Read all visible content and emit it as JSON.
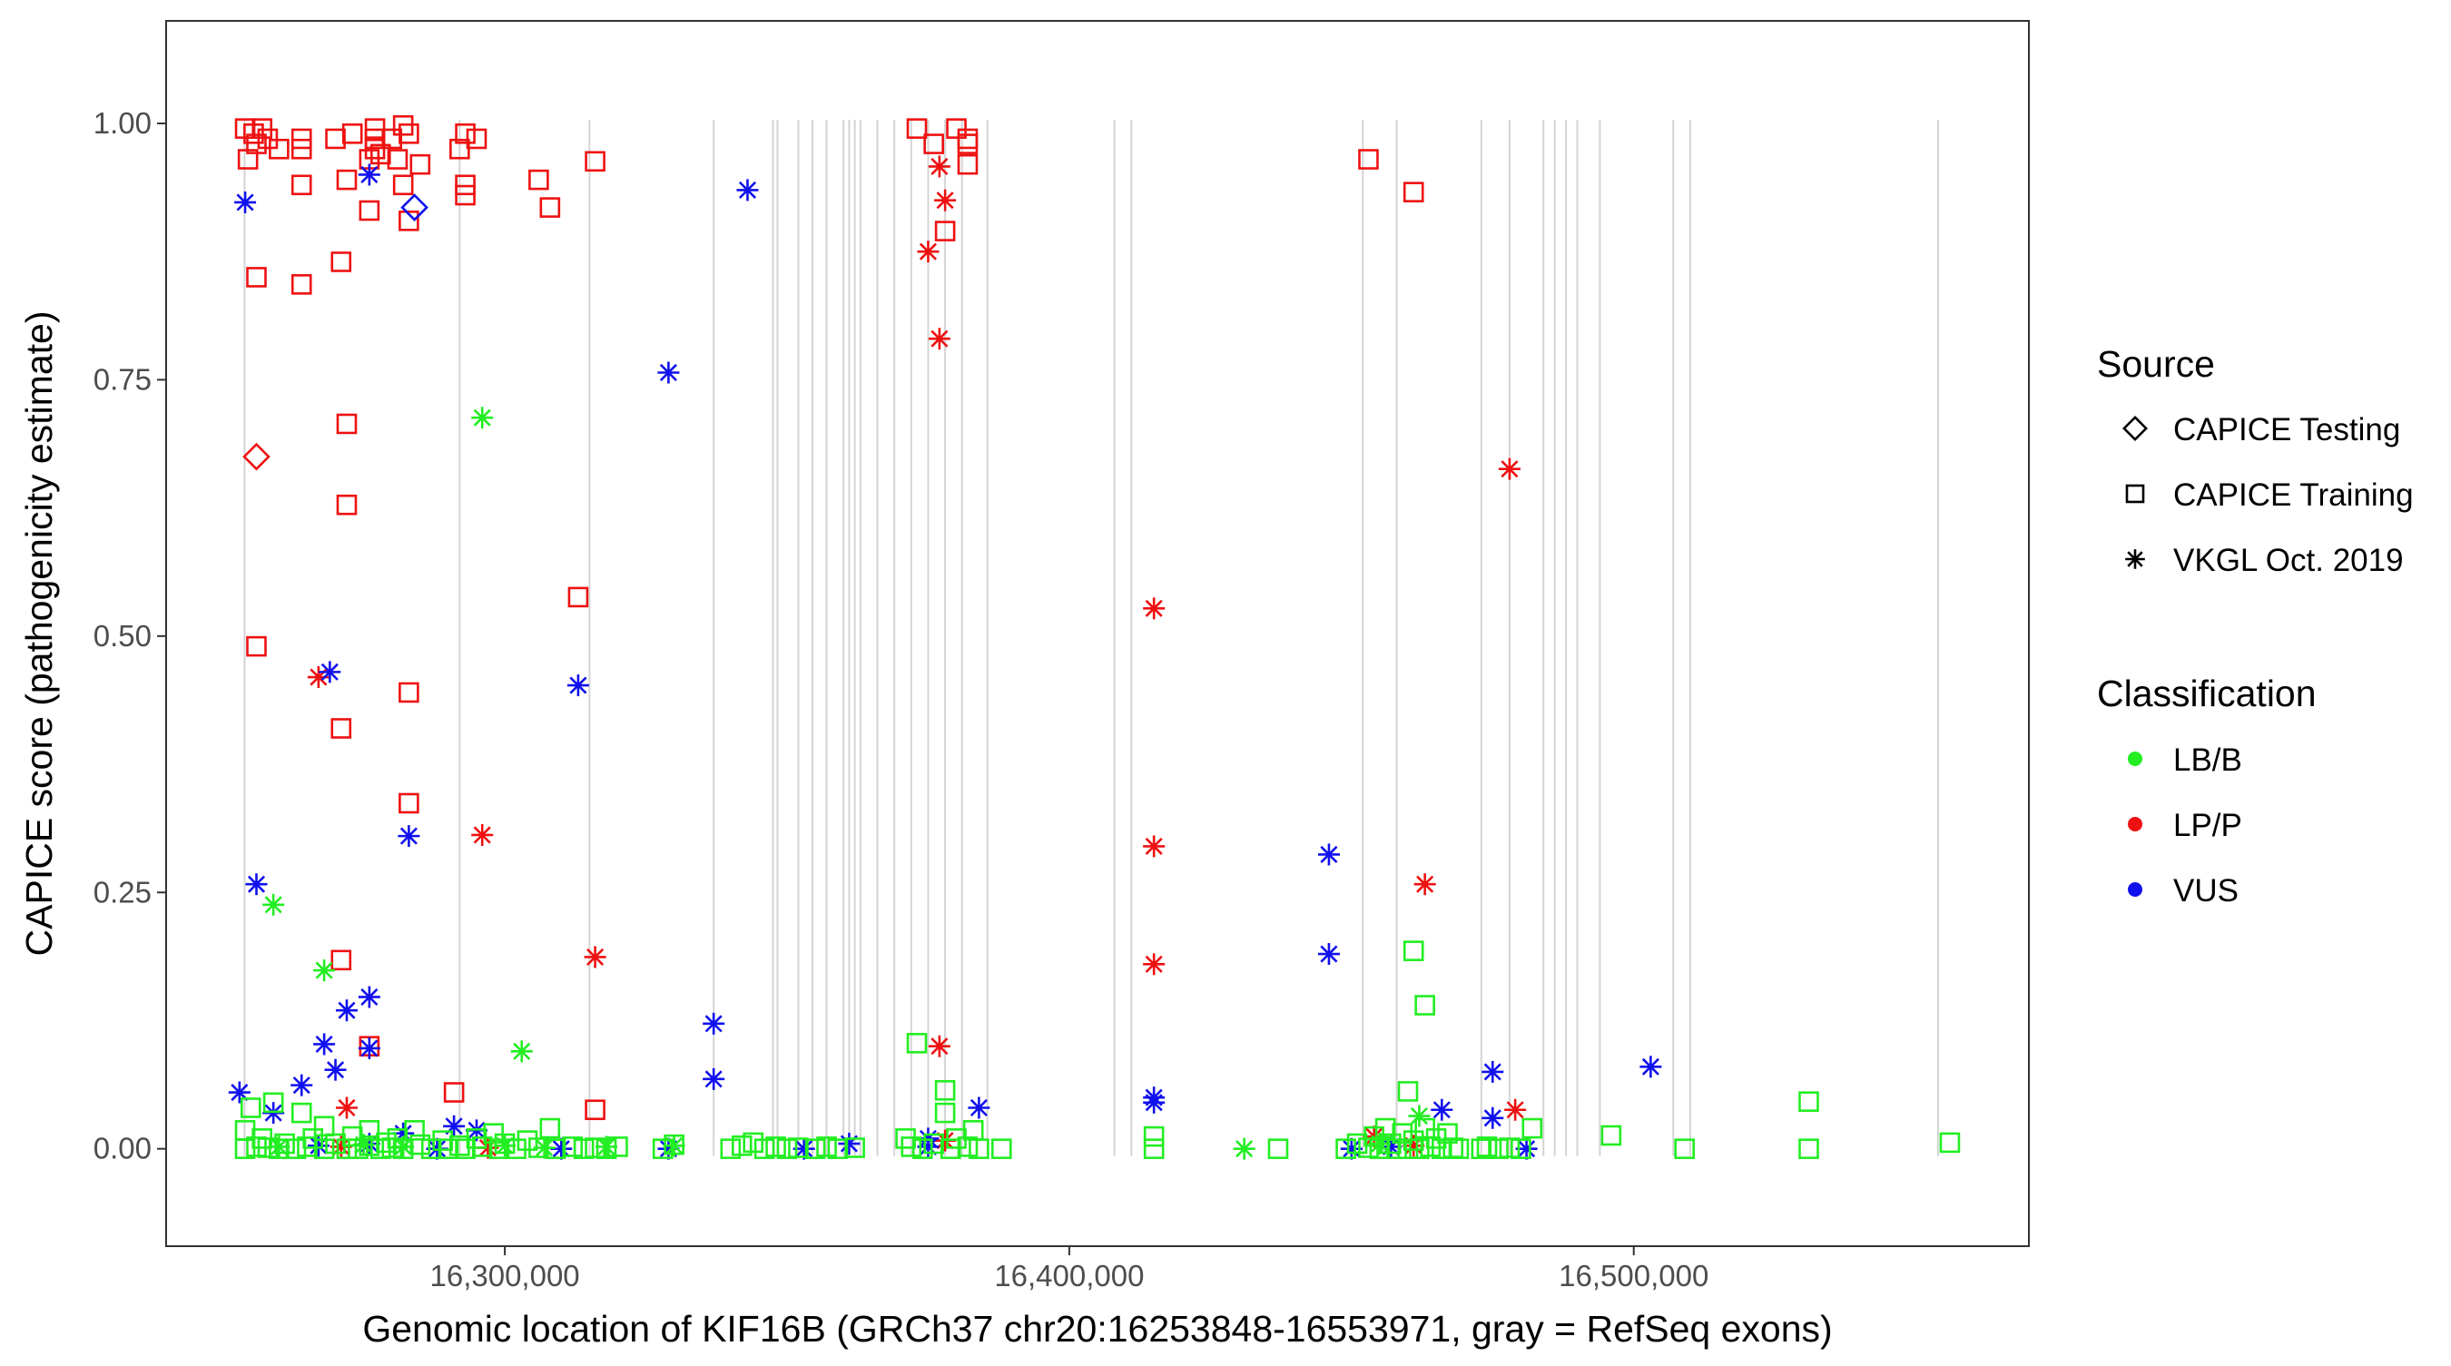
{
  "chart_data": {
    "type": "scatter",
    "xlabel": "Genomic location of KIF16B (GRCh37 chr20:16253848-16553971, gray = RefSeq exons)",
    "ylabel": "CAPICE score (pathogenicity estimate)",
    "xlim": [
      16240000,
      16570000
    ],
    "ylim": [
      -0.095,
      1.1
    ],
    "x_ticks": [
      {
        "value": 16300000,
        "label": "16,300,000"
      },
      {
        "value": 16400000,
        "label": "16,400,000"
      },
      {
        "value": 16500000,
        "label": "16,500,000"
      }
    ],
    "y_ticks": [
      {
        "value": 0,
        "label": "0.00"
      },
      {
        "value": 0.25,
        "label": "0.25"
      },
      {
        "value": 0.5,
        "label": "0.50"
      },
      {
        "value": 0.75,
        "label": "0.75"
      },
      {
        "value": 1,
        "label": "1.00"
      }
    ],
    "exons": [
      16253900,
      16292000,
      16315000,
      16337000,
      16347500,
      16348300,
      16352000,
      16354500,
      16357000,
      16360000,
      16361000,
      16362000,
      16363000,
      16366000,
      16369000,
      16372000,
      16375000,
      16378000,
      16381000,
      16385500,
      16408000,
      16411000,
      16452000,
      16458000,
      16473000,
      16478000,
      16484000,
      16486000,
      16488000,
      16490000,
      16494000,
      16507000,
      16510000,
      16553900
    ],
    "colors": {
      "LB/B": "#22ee22",
      "LP/P": "#ee1111",
      "VUS": "#1111ee"
    },
    "legend": {
      "source_title": "Source",
      "source_items": [
        {
          "label": "CAPICE Testing",
          "shape": "diamond"
        },
        {
          "label": "CAPICE Training",
          "shape": "square"
        },
        {
          "label": "VKGL Oct. 2019",
          "shape": "asterisk"
        }
      ],
      "class_title": "Classification",
      "class_items": [
        {
          "label": "LB/B",
          "color": "#22ee22"
        },
        {
          "label": "LP/P",
          "color": "#ee1111"
        },
        {
          "label": "VUS",
          "color": "#1111ee"
        }
      ]
    },
    "series": [
      {
        "name": "CAPICE Training / LP/P",
        "shape": "square",
        "class": "LP/P",
        "points": [
          [
            16254000,
            0.995
          ],
          [
            16255500,
            0.99
          ],
          [
            16257000,
            0.995
          ],
          [
            16254500,
            0.965
          ],
          [
            16256000,
            0.98
          ],
          [
            16258000,
            0.985
          ],
          [
            16260000,
            0.975
          ],
          [
            16264000,
            0.985
          ],
          [
            16264000,
            0.975
          ],
          [
            16264000,
            0.94
          ],
          [
            16270000,
            0.985
          ],
          [
            16273000,
            0.99
          ],
          [
            16272000,
            0.945
          ],
          [
            16277000,
            0.995
          ],
          [
            16277000,
            0.985
          ],
          [
            16277000,
            0.975
          ],
          [
            16276000,
            0.965
          ],
          [
            16278000,
            0.97
          ],
          [
            16280000,
            0.985
          ],
          [
            16282000,
            0.998
          ],
          [
            16283000,
            0.99
          ],
          [
            16281000,
            0.965
          ],
          [
            16285000,
            0.96
          ],
          [
            16282000,
            0.94
          ],
          [
            16283000,
            0.905
          ],
          [
            16276000,
            0.915
          ],
          [
            16293000,
            0.99
          ],
          [
            16295000,
            0.985
          ],
          [
            16292000,
            0.975
          ],
          [
            16293000,
            0.94
          ],
          [
            16293000,
            0.93
          ],
          [
            16306000,
            0.945
          ],
          [
            16308000,
            0.918
          ],
          [
            16316000,
            0.963
          ],
          [
            16256000,
            0.85
          ],
          [
            16264000,
            0.843
          ],
          [
            16271000,
            0.865
          ],
          [
            16373000,
            0.995
          ],
          [
            16376000,
            0.98
          ],
          [
            16380000,
            0.995
          ],
          [
            16382000,
            0.985
          ],
          [
            16382000,
            0.98
          ],
          [
            16382000,
            0.96
          ],
          [
            16378000,
            0.895
          ],
          [
            16453000,
            0.965
          ],
          [
            16461000,
            0.933
          ],
          [
            16272000,
            0.707
          ],
          [
            16272000,
            0.628
          ],
          [
            16256000,
            0.49
          ],
          [
            16313000,
            0.538
          ],
          [
            16271000,
            0.41
          ],
          [
            16283000,
            0.445
          ],
          [
            16283000,
            0.337
          ],
          [
            16271000,
            0.184
          ],
          [
            16276000,
            0.1
          ],
          [
            16291000,
            0.055
          ],
          [
            16316000,
            0.038
          ]
        ]
      },
      {
        "name": "CAPICE Testing / LP/P",
        "shape": "diamond",
        "class": "LP/P",
        "points": [
          [
            16256000,
            0.675
          ]
        ]
      },
      {
        "name": "CAPICE Testing / VUS",
        "shape": "diamond",
        "class": "VUS",
        "points": [
          [
            16284000,
            0.918
          ]
        ]
      },
      {
        "name": "VKGL Oct. 2019 / LP/P",
        "shape": "asterisk",
        "class": "LP/P",
        "points": [
          [
            16377000,
            0.958
          ],
          [
            16378000,
            0.925
          ],
          [
            16375000,
            0.875
          ],
          [
            16377000,
            0.79
          ],
          [
            16267000,
            0.46
          ],
          [
            16296000,
            0.306
          ],
          [
            16316000,
            0.187
          ],
          [
            16377000,
            0.1
          ],
          [
            16272000,
            0.04
          ],
          [
            16378000,
            0.008
          ],
          [
            16271000,
            0.002
          ],
          [
            16297000,
            0.001
          ],
          [
            16415000,
            0.527
          ],
          [
            16415000,
            0.295
          ],
          [
            16415000,
            0.18
          ],
          [
            16478000,
            0.663
          ],
          [
            16463000,
            0.258
          ],
          [
            16479000,
            0.038
          ],
          [
            16454000,
            0.012
          ],
          [
            16461000,
            0.003
          ]
        ]
      },
      {
        "name": "VKGL Oct. 2019 / VUS",
        "shape": "asterisk",
        "class": "VUS",
        "points": [
          [
            16254000,
            0.923
          ],
          [
            16276000,
            0.95
          ],
          [
            16343000,
            0.935
          ],
          [
            16329000,
            0.757
          ],
          [
            16269000,
            0.465
          ],
          [
            16313000,
            0.452
          ],
          [
            16283000,
            0.305
          ],
          [
            16256000,
            0.258
          ],
          [
            16337000,
            0.122
          ],
          [
            16337000,
            0.068
          ],
          [
            16276000,
            0.148
          ],
          [
            16272000,
            0.135
          ],
          [
            16268000,
            0.102
          ],
          [
            16276000,
            0.098
          ],
          [
            16270000,
            0.077
          ],
          [
            16264000,
            0.062
          ],
          [
            16253000,
            0.055
          ],
          [
            16259000,
            0.035
          ],
          [
            16282000,
            0.015
          ],
          [
            16291000,
            0.022
          ],
          [
            16295000,
            0.018
          ],
          [
            16384000,
            0.04
          ],
          [
            16375000,
            0.01
          ],
          [
            16375000,
            0.002
          ],
          [
            16361000,
            0.005
          ],
          [
            16329000,
            0.0
          ],
          [
            16415000,
            0.05
          ],
          [
            16415000,
            0.045
          ],
          [
            16446000,
            0.287
          ],
          [
            16446000,
            0.19
          ],
          [
            16475000,
            0.075
          ],
          [
            16475000,
            0.03
          ],
          [
            16466000,
            0.038
          ],
          [
            16503000,
            0.08
          ],
          [
            16481000,
            0.0
          ],
          [
            16450000,
            0.0
          ],
          [
            16457000,
            0.002
          ],
          [
            16267000,
            0.003
          ],
          [
            16276000,
            0.005
          ],
          [
            16288000,
            0.0
          ],
          [
            16310000,
            0.0
          ],
          [
            16353000,
            0.0
          ]
        ]
      },
      {
        "name": "VKGL Oct. 2019 / LB/B",
        "shape": "asterisk",
        "class": "LB/B",
        "points": [
          [
            16296000,
            0.713
          ],
          [
            16259000,
            0.238
          ],
          [
            16268000,
            0.174
          ],
          [
            16303000,
            0.095
          ],
          [
            16431000,
            0.0
          ],
          [
            16462000,
            0.032
          ],
          [
            16300000,
            0.003
          ],
          [
            16260000,
            0.002
          ],
          [
            16275000,
            0.004
          ],
          [
            16307000,
            0.001
          ],
          [
            16318000,
            0.002
          ],
          [
            16330000,
            0.003
          ],
          [
            16282000,
            0.002
          ],
          [
            16455000,
            0.005
          ]
        ]
      },
      {
        "name": "CAPICE Training / LB/B",
        "shape": "square",
        "class": "LB/B",
        "points": [
          [
            16254000,
            0.018
          ],
          [
            16254000,
            0.0
          ],
          [
            16255000,
            0.04
          ],
          [
            16256000,
            0.002
          ],
          [
            16257000,
            0.01
          ],
          [
            16258000,
            0.001
          ],
          [
            16259000,
            0.045
          ],
          [
            16260000,
            0.0
          ],
          [
            16261000,
            0.005
          ],
          [
            16263000,
            0.0
          ],
          [
            16264000,
            0.035
          ],
          [
            16265000,
            0.002
          ],
          [
            16266000,
            0.01
          ],
          [
            16268000,
            0.022
          ],
          [
            16268000,
            0.0
          ],
          [
            16270000,
            0.005
          ],
          [
            16272000,
            0.0
          ],
          [
            16273000,
            0.012
          ],
          [
            16274000,
            0.0
          ],
          [
            16276000,
            0.018
          ],
          [
            16276000,
            0.003
          ],
          [
            16278000,
            0.0
          ],
          [
            16279000,
            0.006
          ],
          [
            16280000,
            0.001
          ],
          [
            16281000,
            0.01
          ],
          [
            16282000,
            0.0
          ],
          [
            16284000,
            0.018
          ],
          [
            16285000,
            0.004
          ],
          [
            16287000,
            0.0
          ],
          [
            16289000,
            0.008
          ],
          [
            16290000,
            0.0
          ],
          [
            16292000,
            0.003
          ],
          [
            16293000,
            0.0
          ],
          [
            16295000,
            0.01
          ],
          [
            16296000,
            0.002
          ],
          [
            16298000,
            0.015
          ],
          [
            16299000,
            0.0
          ],
          [
            16300000,
            0.005
          ],
          [
            16302000,
            0.0
          ],
          [
            16304000,
            0.008
          ],
          [
            16306000,
            0.001
          ],
          [
            16308000,
            0.02
          ],
          [
            16309000,
            0.0
          ],
          [
            16312000,
            0.002
          ],
          [
            16314000,
            0.0
          ],
          [
            16316000,
            0.001
          ],
          [
            16318000,
            0.0
          ],
          [
            16320000,
            0.002
          ],
          [
            16328000,
            0.0
          ],
          [
            16330000,
            0.004
          ],
          [
            16340000,
            0.0
          ],
          [
            16342000,
            0.003
          ],
          [
            16344000,
            0.006
          ],
          [
            16346000,
            0.0
          ],
          [
            16348000,
            0.002
          ],
          [
            16350000,
            0.0
          ],
          [
            16352000,
            0.001
          ],
          [
            16355000,
            0.0
          ],
          [
            16357000,
            0.002
          ],
          [
            16359000,
            0.0
          ],
          [
            16362000,
            0.001
          ],
          [
            16371000,
            0.01
          ],
          [
            16372000,
            0.002
          ],
          [
            16373000,
            0.103
          ],
          [
            16374000,
            0.0
          ],
          [
            16376000,
            0.005
          ],
          [
            16378000,
            0.057
          ],
          [
            16378000,
            0.035
          ],
          [
            16379000,
            0.0
          ],
          [
            16380000,
            0.01
          ],
          [
            16382000,
            0.002
          ],
          [
            16383000,
            0.018
          ],
          [
            16384000,
            0.0
          ],
          [
            16388000,
            0.0
          ],
          [
            16415000,
            0.012
          ],
          [
            16415000,
            0.0
          ],
          [
            16437000,
            0.0
          ],
          [
            16449000,
            0.0
          ],
          [
            16451000,
            0.005
          ],
          [
            16453000,
            0.001
          ],
          [
            16454000,
            0.012
          ],
          [
            16455000,
            0.0
          ],
          [
            16456000,
            0.02
          ],
          [
            16457000,
            0.005
          ],
          [
            16458000,
            0.0
          ],
          [
            16459000,
            0.015
          ],
          [
            16460000,
            0.056
          ],
          [
            16460000,
            0.0
          ],
          [
            16461000,
            0.193
          ],
          [
            16461000,
            0.008
          ],
          [
            16462000,
            0.0
          ],
          [
            16463000,
            0.14
          ],
          [
            16463000,
            0.02
          ],
          [
            16464000,
            0.002
          ],
          [
            16465000,
            0.01
          ],
          [
            16466000,
            0.0
          ],
          [
            16467000,
            0.015
          ],
          [
            16468000,
            0.001
          ],
          [
            16469000,
            0.0
          ],
          [
            16473000,
            0.0
          ],
          [
            16474000,
            0.002
          ],
          [
            16476000,
            0.0
          ],
          [
            16478000,
            0.001
          ],
          [
            16480000,
            0.0
          ],
          [
            16482000,
            0.02
          ],
          [
            16496000,
            0.013
          ],
          [
            16509000,
            0.0
          ],
          [
            16531000,
            0.046
          ],
          [
            16531000,
            0.0
          ],
          [
            16556000,
            0.006
          ]
        ]
      }
    ]
  }
}
